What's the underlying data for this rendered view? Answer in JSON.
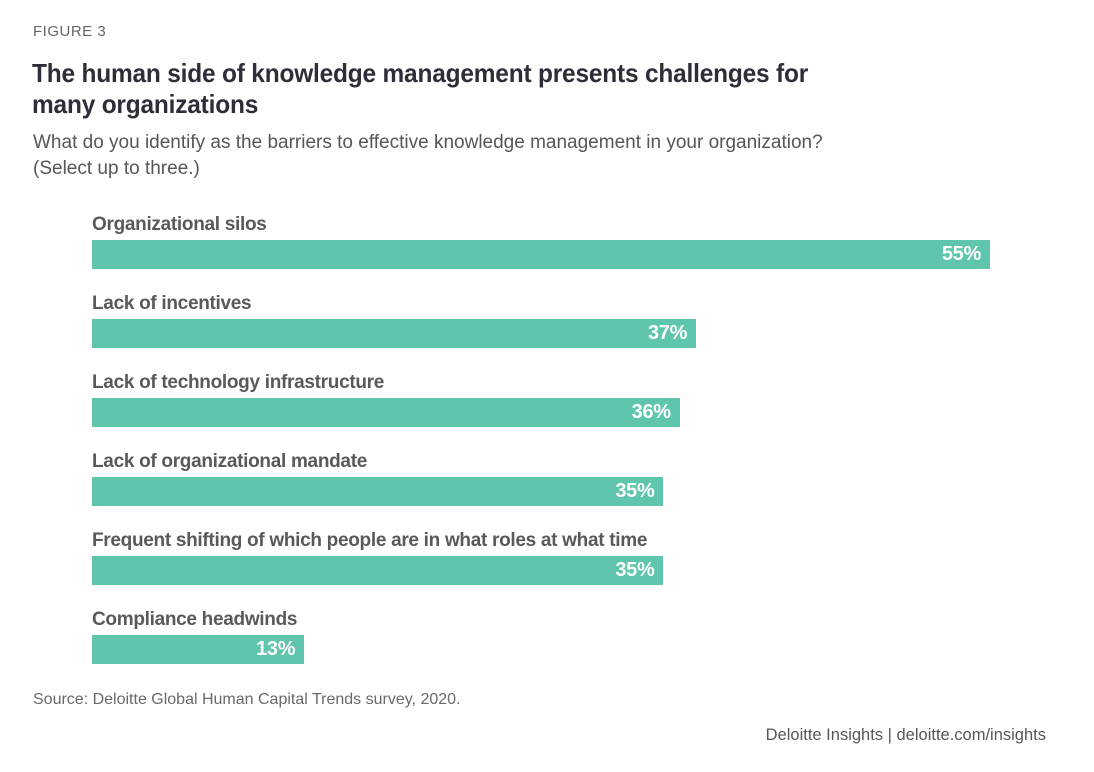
{
  "figure_label": "FIGURE 3",
  "title_lines": [
    "The human side of knowledge management presents challenges for",
    "many organizations"
  ],
  "subtitle_lines": [
    "What do you identify as the barriers to effective knowledge management in your organization?",
    "(Select up to three.)"
  ],
  "chart_data": {
    "type": "bar",
    "orientation": "horizontal",
    "title": "The human side of knowledge management presents challenges for many organizations",
    "subtitle": "What do you identify as the barriers to effective knowledge management in your organization? (Select up to three.)",
    "categories": [
      "Organizational silos",
      "Lack of incentives",
      "Lack of technology infrastructure",
      "Lack of organizational mandate",
      "Frequent shifting of which people are in what roles at what time",
      "Compliance headwinds"
    ],
    "values": [
      55,
      37,
      36,
      35,
      35,
      13
    ],
    "value_suffix": "%",
    "xlim": [
      0,
      55
    ],
    "grid": false,
    "legend": false,
    "bar_color": "#5FC5AC",
    "value_label_color": "#FFFFFF",
    "category_label_color": "#58595B"
  },
  "source": "Source: Deloitte Global Human Capital Trends survey, 2020.",
  "footer": "Deloitte Insights | deloitte.com/insights"
}
